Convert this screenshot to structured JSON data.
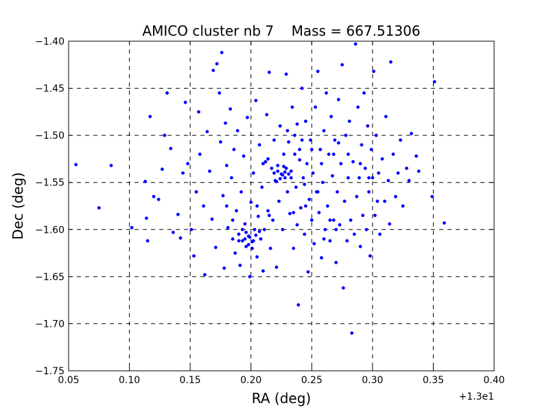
{
  "chart_data": {
    "type": "scatter",
    "title": "AMICO cluster nb 7    Mass = 667.51306",
    "xlabel": "RA (deg)",
    "ylabel": "Dec (deg)",
    "x_offset_label": "+1.3e1",
    "xlim": [
      0.05,
      0.4
    ],
    "ylim": [
      -1.75,
      -1.4
    ],
    "x_ticks": [
      "0.05",
      "0.10",
      "0.15",
      "0.20",
      "0.25",
      "0.30",
      "0.35",
      "0.40"
    ],
    "y_ticks": [
      "−1.40",
      "−1.45",
      "−1.50",
      "−1.55",
      "−1.60",
      "−1.65",
      "−1.70",
      "−1.75"
    ],
    "grid": true,
    "point_color": "#0000ff",
    "series": [
      {
        "points": [
          [
            0.056,
            -1.531
          ],
          [
            0.075,
            -1.577
          ],
          [
            0.085,
            -1.532
          ],
          [
            0.102,
            -1.598
          ],
          [
            0.113,
            -1.549
          ],
          [
            0.114,
            -1.588
          ],
          [
            0.115,
            -1.612
          ],
          [
            0.12,
            -1.565
          ],
          [
            0.117,
            -1.48
          ],
          [
            0.124,
            -1.568
          ],
          [
            0.127,
            -1.536
          ],
          [
            0.129,
            -1.5
          ],
          [
            0.131,
            -1.455
          ],
          [
            0.134,
            -1.514
          ],
          [
            0.136,
            -1.603
          ],
          [
            0.14,
            -1.584
          ],
          [
            0.142,
            -1.609
          ],
          [
            0.144,
            -1.54
          ],
          [
            0.146,
            -1.465
          ],
          [
            0.148,
            -1.53
          ],
          [
            0.151,
            -1.6
          ],
          [
            0.153,
            -1.628
          ],
          [
            0.155,
            -1.56
          ],
          [
            0.157,
            -1.475
          ],
          [
            0.158,
            -1.52
          ],
          [
            0.161,
            -1.575
          ],
          [
            0.162,
            -1.648
          ],
          [
            0.164,
            -1.496
          ],
          [
            0.166,
            -1.538
          ],
          [
            0.168,
            -1.589
          ],
          [
            0.169,
            -1.431
          ],
          [
            0.171,
            -1.619
          ],
          [
            0.172,
            -1.424
          ],
          [
            0.174,
            -1.455
          ],
          [
            0.175,
            -1.507
          ],
          [
            0.176,
            -1.412
          ],
          [
            0.177,
            -1.564
          ],
          [
            0.178,
            -1.641
          ],
          [
            0.179,
            -1.487
          ],
          [
            0.18,
            -1.532
          ],
          [
            0.181,
            -1.598
          ],
          [
            0.183,
            -1.472
          ],
          [
            0.184,
            -1.545
          ],
          [
            0.185,
            -1.61
          ],
          [
            0.186,
            -1.515
          ],
          [
            0.187,
            -1.625
          ],
          [
            0.188,
            -1.58
          ],
          [
            0.189,
            -1.495
          ],
          [
            0.19,
            -1.605
          ],
          [
            0.191,
            -1.638
          ],
          [
            0.192,
            -1.56
          ],
          [
            0.193,
            -1.612
          ],
          [
            0.194,
            -1.522
          ],
          [
            0.195,
            -1.594
          ],
          [
            0.196,
            -1.618
          ],
          [
            0.197,
            -1.481
          ],
          [
            0.198,
            -1.607
          ],
          [
            0.199,
            -1.65
          ],
          [
            0.2,
            -1.571
          ],
          [
            0.201,
            -1.613
          ],
          [
            0.202,
            -1.54
          ],
          [
            0.203,
            -1.6
          ],
          [
            0.204,
            -1.463
          ],
          [
            0.205,
            -1.629
          ],
          [
            0.206,
            -1.586
          ],
          [
            0.207,
            -1.51
          ],
          [
            0.208,
            -1.61
          ],
          [
            0.209,
            -1.555
          ],
          [
            0.21,
            -1.644
          ],
          [
            0.211,
            -1.6
          ],
          [
            0.212,
            -1.528
          ],
          [
            0.213,
            -1.478
          ],
          [
            0.214,
            -1.58
          ],
          [
            0.215,
            -1.433
          ],
          [
            0.216,
            -1.62
          ],
          [
            0.217,
            -1.535
          ],
          [
            0.218,
            -1.59
          ],
          [
            0.219,
            -1.505
          ],
          [
            0.22,
            -1.548
          ],
          [
            0.221,
            -1.64
          ],
          [
            0.222,
            -1.532
          ],
          [
            0.223,
            -1.57
          ],
          [
            0.224,
            -1.49
          ],
          [
            0.225,
            -1.541
          ],
          [
            0.226,
            -1.6
          ],
          [
            0.227,
            -1.52
          ],
          [
            0.228,
            -1.545
          ],
          [
            0.229,
            -1.435
          ],
          [
            0.23,
            -1.56
          ],
          [
            0.231,
            -1.507
          ],
          [
            0.232,
            -1.583
          ],
          [
            0.233,
            -1.538
          ],
          [
            0.234,
            -1.47
          ],
          [
            0.235,
            -1.62
          ],
          [
            0.236,
            -1.5
          ],
          [
            0.237,
            -1.555
          ],
          [
            0.238,
            -1.595
          ],
          [
            0.239,
            -1.68
          ],
          [
            0.24,
            -1.515
          ],
          [
            0.241,
            -1.577
          ],
          [
            0.242,
            -1.45
          ],
          [
            0.243,
            -1.545
          ],
          [
            0.244,
            -1.605
          ],
          [
            0.245,
            -1.485
          ],
          [
            0.246,
            -1.53
          ],
          [
            0.247,
            -1.645
          ],
          [
            0.248,
            -1.568
          ],
          [
            0.249,
            -1.505
          ],
          [
            0.25,
            -1.59
          ],
          [
            0.251,
            -1.54
          ],
          [
            0.252,
            -1.615
          ],
          [
            0.253,
            -1.47
          ],
          [
            0.254,
            -1.56
          ],
          [
            0.255,
            -1.432
          ],
          [
            0.256,
            -1.582
          ],
          [
            0.257,
            -1.515
          ],
          [
            0.258,
            -1.63
          ],
          [
            0.259,
            -1.55
          ],
          [
            0.26,
            -1.495
          ],
          [
            0.261,
            -1.6
          ],
          [
            0.262,
            -1.455
          ],
          [
            0.263,
            -1.575
          ],
          [
            0.264,
            -1.52
          ],
          [
            0.265,
            -1.612
          ],
          [
            0.266,
            -1.48
          ],
          [
            0.267,
            -1.543
          ],
          [
            0.268,
            -1.59
          ],
          [
            0.269,
            -1.505
          ],
          [
            0.27,
            -1.635
          ],
          [
            0.271,
            -1.56
          ],
          [
            0.272,
            -1.462
          ],
          [
            0.273,
            -1.595
          ],
          [
            0.274,
            -1.53
          ],
          [
            0.275,
            -1.425
          ],
          [
            0.276,
            -1.662
          ],
          [
            0.277,
            -1.57
          ],
          [
            0.278,
            -1.5
          ],
          [
            0.279,
            -1.612
          ],
          [
            0.28,
            -1.545
          ],
          [
            0.281,
            -1.485
          ],
          [
            0.282,
            -1.59
          ],
          [
            0.283,
            -1.71
          ],
          [
            0.284,
            -1.528
          ],
          [
            0.285,
            -1.605
          ],
          [
            0.286,
            -1.403
          ],
          [
            0.287,
            -1.565
          ],
          [
            0.288,
            -1.47
          ],
          [
            0.289,
            -1.545
          ],
          [
            0.29,
            -1.618
          ],
          [
            0.291,
            -1.51
          ],
          [
            0.292,
            -1.585
          ],
          [
            0.293,
            -1.455
          ],
          [
            0.294,
            -1.535
          ],
          [
            0.295,
            -1.6
          ],
          [
            0.296,
            -1.49
          ],
          [
            0.297,
            -1.56
          ],
          [
            0.298,
            -1.628
          ],
          [
            0.299,
            -1.515
          ],
          [
            0.3,
            -1.545
          ],
          [
            0.301,
            -1.432
          ],
          [
            0.302,
            -1.585
          ],
          [
            0.303,
            -1.5
          ],
          [
            0.304,
            -1.57
          ],
          [
            0.305,
            -1.54
          ],
          [
            0.306,
            -1.605
          ],
          [
            0.308,
            -1.525
          ],
          [
            0.31,
            -1.57
          ],
          [
            0.311,
            -1.48
          ],
          [
            0.313,
            -1.548
          ],
          [
            0.314,
            -1.594
          ],
          [
            0.315,
            -1.422
          ],
          [
            0.317,
            -1.52
          ],
          [
            0.319,
            -1.565
          ],
          [
            0.321,
            -1.54
          ],
          [
            0.323,
            -1.505
          ],
          [
            0.325,
            -1.575
          ],
          [
            0.328,
            -1.535
          ],
          [
            0.33,
            -1.548
          ],
          [
            0.332,
            -1.498
          ],
          [
            0.336,
            -1.522
          ],
          [
            0.338,
            -1.538
          ],
          [
            0.349,
            -1.565
          ],
          [
            0.351,
            -1.443
          ],
          [
            0.359,
            -1.593
          ],
          [
            0.196,
            -1.603
          ],
          [
            0.199,
            -1.608
          ],
          [
            0.202,
            -1.612
          ],
          [
            0.193,
            -1.6
          ],
          [
            0.198,
            -1.616
          ],
          [
            0.204,
            -1.606
          ],
          [
            0.19,
            -1.612
          ],
          [
            0.201,
            -1.62
          ],
          [
            0.207,
            -1.602
          ],
          [
            0.195,
            -1.61
          ],
          [
            0.222,
            -1.538
          ],
          [
            0.226,
            -1.542
          ],
          [
            0.229,
            -1.535
          ],
          [
            0.224,
            -1.546
          ],
          [
            0.231,
            -1.541
          ],
          [
            0.219,
            -1.54
          ],
          [
            0.227,
            -1.533
          ],
          [
            0.233,
            -1.545
          ],
          [
            0.221,
            -1.549
          ],
          [
            0.228,
            -1.539
          ],
          [
            0.21,
            -1.53
          ],
          [
            0.214,
            -1.525
          ],
          [
            0.236,
            -1.52
          ],
          [
            0.24,
            -1.526
          ],
          [
            0.244,
            -1.552
          ],
          [
            0.205,
            -1.575
          ],
          [
            0.215,
            -1.585
          ],
          [
            0.235,
            -1.582
          ],
          [
            0.245,
            -1.575
          ],
          [
            0.255,
            -1.56
          ],
          [
            0.265,
            -1.59
          ],
          [
            0.27,
            -1.6
          ],
          [
            0.26,
            -1.61
          ],
          [
            0.185,
            -1.59
          ],
          [
            0.18,
            -1.575
          ],
          [
            0.23,
            -1.495
          ],
          [
            0.238,
            -1.488
          ],
          [
            0.242,
            -1.505
          ],
          [
            0.25,
            -1.515
          ],
          [
            0.258,
            -1.53
          ],
          [
            0.268,
            -1.52
          ],
          [
            0.272,
            -1.508
          ],
          [
            0.28,
            -1.52
          ],
          [
            0.29,
            -1.53
          ],
          [
            0.297,
            -1.545
          ]
        ]
      }
    ]
  }
}
